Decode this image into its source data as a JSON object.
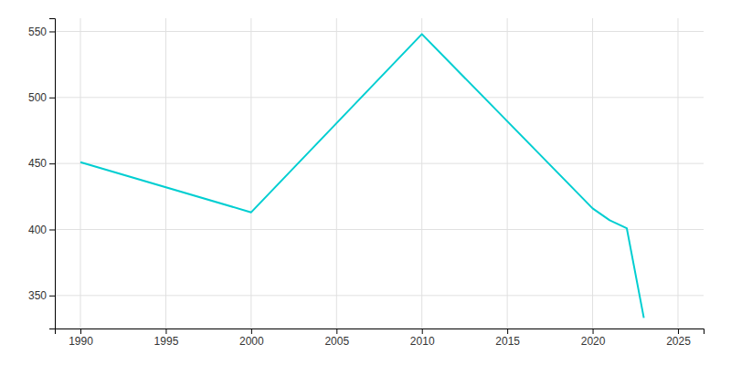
{
  "chart_data": {
    "type": "line",
    "x": [
      1990,
      2000,
      2010,
      2020,
      2021,
      2022,
      2023
    ],
    "values": [
      451,
      413,
      548,
      416,
      407,
      401,
      333
    ],
    "color": "#00CED1",
    "xlim": [
      1988.5,
      2026.5
    ],
    "ylim": [
      325,
      560
    ],
    "xticks": [
      1990,
      1995,
      2000,
      2005,
      2010,
      2015,
      2020,
      2025
    ],
    "yticks": [
      350,
      400,
      450,
      500,
      550
    ],
    "grid": true
  }
}
